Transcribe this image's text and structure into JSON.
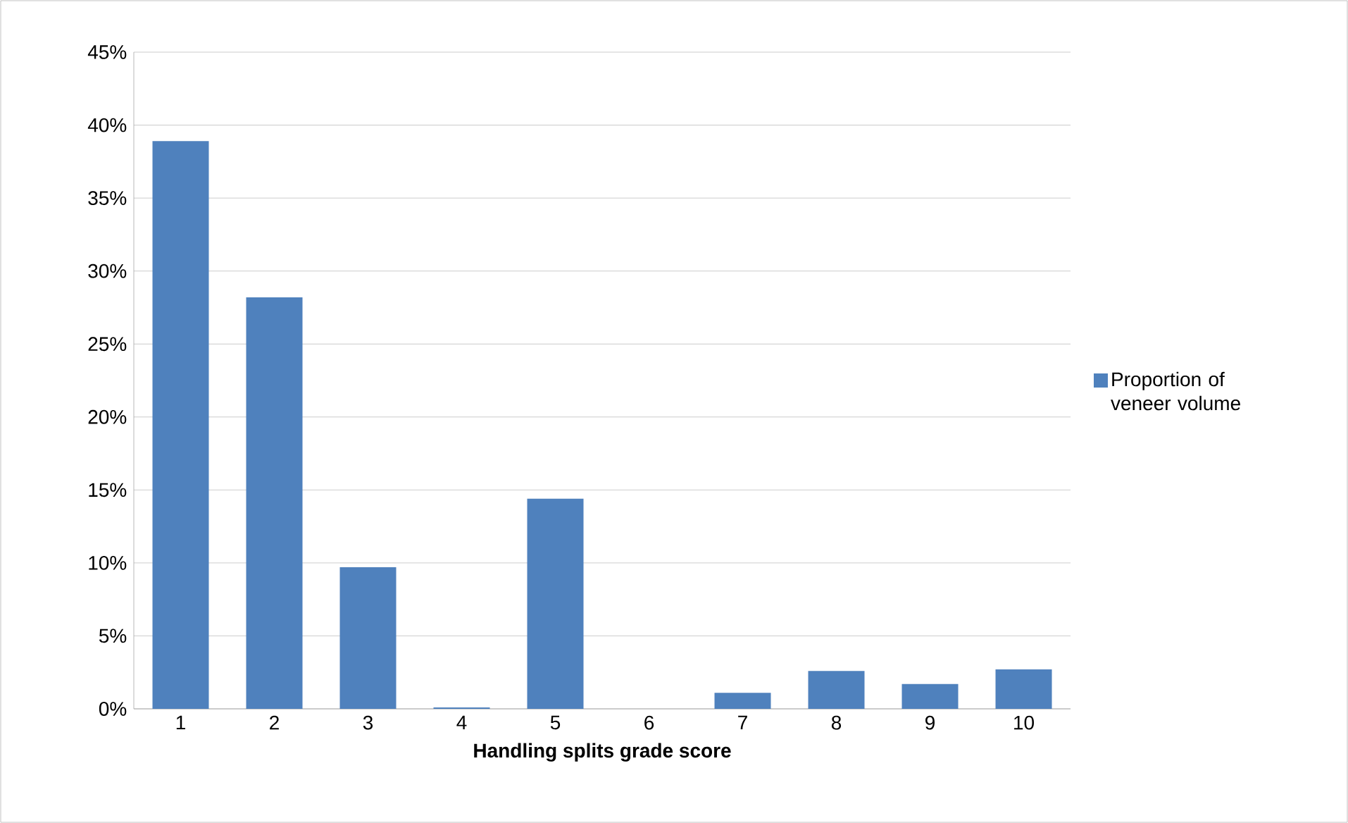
{
  "chart_data": {
    "type": "bar",
    "xlabel": "Handling splits grade score",
    "categories": [
      "1",
      "2",
      "3",
      "4",
      "5",
      "6",
      "7",
      "8",
      "9",
      "10"
    ],
    "series": [
      {
        "name": "Proportion of veneer volume",
        "color": "#4f81bd",
        "values": [
          38.9,
          28.2,
          9.7,
          0.1,
          14.4,
          0,
          1.1,
          2.6,
          1.7,
          2.7
        ]
      }
    ],
    "ylim": [
      0,
      45
    ],
    "yticks": [
      {
        "value": 0,
        "label": "0%"
      },
      {
        "value": 5,
        "label": "5%"
      },
      {
        "value": 10,
        "label": "10%"
      },
      {
        "value": 15,
        "label": "15%"
      },
      {
        "value": 20,
        "label": "20%"
      },
      {
        "value": 25,
        "label": "25%"
      },
      {
        "value": 30,
        "label": "30%"
      },
      {
        "value": 35,
        "label": "35%"
      },
      {
        "value": 40,
        "label": "40%"
      },
      {
        "value": 45,
        "label": "45%"
      }
    ],
    "grid": "y",
    "legend": "right"
  }
}
